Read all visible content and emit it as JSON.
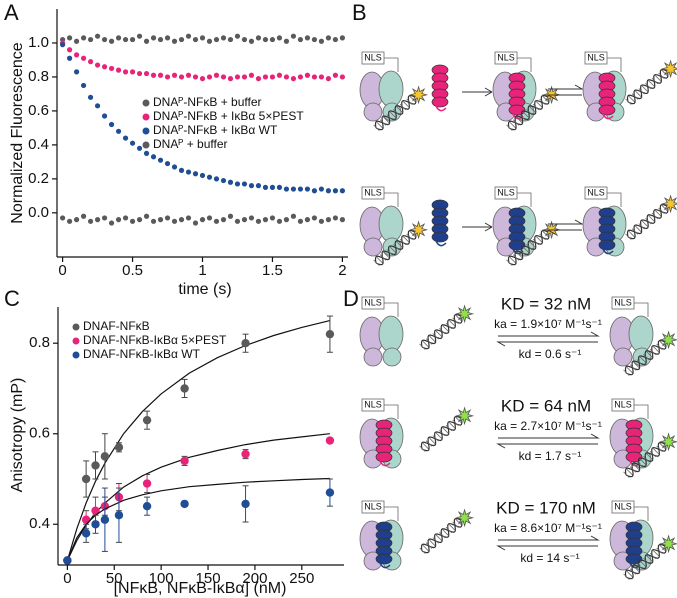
{
  "panels": [
    "A",
    "B",
    "C",
    "D"
  ],
  "chart_data": [
    {
      "type": "scatter",
      "x_label": "time (s)",
      "y_label": "Normalized Fluorescence",
      "xlim": [
        -0.04,
        2.04
      ],
      "ylim": [
        -0.26,
        1.2
      ],
      "xticks": [
        0,
        0.5,
        1,
        1.5,
        2
      ],
      "yticks": [
        {
          "value": 0,
          "label": "0.0"
        },
        0.2,
        0.4,
        0.6,
        0.8,
        {
          "value": 1,
          "label": "1.0"
        }
      ],
      "x": [
        0,
        0.05,
        0.1,
        0.15,
        0.2,
        0.25,
        0.3,
        0.35,
        0.4,
        0.45,
        0.5,
        0.55,
        0.6,
        0.65,
        0.7,
        0.75,
        0.8,
        0.85,
        0.9,
        0.95,
        1,
        1.05,
        1.1,
        1.15,
        1.2,
        1.25,
        1.3,
        1.35,
        1.4,
        1.45,
        1.5,
        1.55,
        1.6,
        1.65,
        1.7,
        1.75,
        1.8,
        1.85,
        1.9,
        1.95,
        2
      ],
      "series": [
        {
          "name": "DNAᴾ-NFκB + buffer",
          "color": "#5a5a5a",
          "values": [
            1.02,
            1.03,
            1.01,
            1.03,
            1.02,
            1.04,
            1.02,
            1.01,
            1.03,
            1.02,
            1.02,
            1.04,
            1.01,
            1.03,
            1.02,
            1.03,
            1.01,
            1.02,
            1.04,
            1.02,
            1.03,
            1.01,
            1.02,
            1.03,
            1.02,
            1.04,
            1.02,
            1.01,
            1.03,
            1.02,
            1.02,
            1.03,
            1.01,
            1.04,
            1.02,
            1.03,
            1.02,
            1.01,
            1.03,
            1.02,
            1.03
          ]
        },
        {
          "name": "DNAᴾ-NFκB + IκBα 5×PEST",
          "color": "#e8247a",
          "values": [
            1.0,
            0.96,
            0.93,
            0.91,
            0.89,
            0.87,
            0.86,
            0.85,
            0.84,
            0.83,
            0.83,
            0.82,
            0.82,
            0.81,
            0.81,
            0.8,
            0.81,
            0.8,
            0.81,
            0.8,
            0.79,
            0.8,
            0.81,
            0.8,
            0.79,
            0.8,
            0.8,
            0.81,
            0.79,
            0.8,
            0.8,
            0.81,
            0.8,
            0.79,
            0.8,
            0.81,
            0.8,
            0.8,
            0.79,
            0.81,
            0.8
          ]
        },
        {
          "name": "DNAᴾ-NFκB + IκBα WT",
          "color": "#1f4e96",
          "values": [
            0.99,
            0.91,
            0.83,
            0.75,
            0.68,
            0.63,
            0.57,
            0.52,
            0.48,
            0.44,
            0.41,
            0.38,
            0.35,
            0.33,
            0.31,
            0.29,
            0.27,
            0.25,
            0.24,
            0.23,
            0.22,
            0.21,
            0.2,
            0.19,
            0.18,
            0.17,
            0.17,
            0.16,
            0.16,
            0.15,
            0.15,
            0.15,
            0.14,
            0.14,
            0.14,
            0.14,
            0.13,
            0.14,
            0.13,
            0.13,
            0.13
          ]
        },
        {
          "name": "DNAᴾ + buffer",
          "color": "#5a5a5a",
          "values": [
            -0.03,
            -0.05,
            -0.04,
            -0.02,
            -0.05,
            -0.04,
            -0.03,
            -0.06,
            -0.04,
            -0.03,
            -0.05,
            -0.04,
            -0.02,
            -0.05,
            -0.04,
            -0.03,
            -0.05,
            -0.04,
            -0.03,
            -0.06,
            -0.04,
            -0.03,
            -0.05,
            -0.04,
            -0.02,
            -0.05,
            -0.04,
            -0.03,
            -0.05,
            -0.04,
            -0.03,
            -0.05,
            -0.04,
            -0.02,
            -0.05,
            -0.04,
            -0.03,
            -0.05,
            -0.04,
            -0.03,
            -0.04
          ]
        }
      ]
    },
    {
      "type": "scatter",
      "x_label": "[NFκB, NFκB-IκBα] (nM)",
      "y_label": "Anisotropy (mP)",
      "xlim": [
        -10,
        295
      ],
      "ylim": [
        0.31,
        0.88
      ],
      "xticks": [
        0,
        50,
        100,
        150,
        200,
        250
      ],
      "yticks": [
        0.4,
        0.6,
        0.8
      ],
      "x": [
        0,
        20,
        30,
        40,
        55,
        85,
        125,
        190,
        280
      ],
      "fit_x": [
        0,
        10,
        20,
        30,
        40,
        60,
        80,
        100,
        130,
        160,
        190,
        220,
        250,
        280
      ],
      "series": [
        {
          "name": "DNAF-NFκB",
          "color": "#5a5a5a",
          "values": [
            0.32,
            0.5,
            0.53,
            0.55,
            0.57,
            0.63,
            0.7,
            0.8,
            0.82
          ],
          "errors": [
            0,
            0.04,
            0.03,
            0.05,
            0.01,
            0.02,
            0.02,
            0.02,
            0.04
          ],
          "fit": [
            0.32,
            0.39,
            0.447,
            0.495,
            0.535,
            0.6,
            0.649,
            0.688,
            0.734,
            0.768,
            0.795,
            0.817,
            0.835,
            0.85
          ]
        },
        {
          "name": "DNAF-NFκB-IκBα 5×PEST",
          "color": "#e8247a",
          "values": [
            0.32,
            0.41,
            0.43,
            0.44,
            0.46,
            0.49,
            0.54,
            0.555,
            0.585
          ],
          "errors": [
            0,
            0.02,
            0.03,
            0.02,
            0.03,
            0.02,
            0.01,
            0.01,
            0.005
          ],
          "fit": [
            0.32,
            0.364,
            0.398,
            0.425,
            0.447,
            0.482,
            0.507,
            0.526,
            0.548,
            0.563,
            0.576,
            0.586,
            0.593,
            0.6
          ]
        },
        {
          "name": "DNAF-NFκB-IκBα WT",
          "color": "#1f4e96",
          "values": [
            0.32,
            0.38,
            0.4,
            0.41,
            0.42,
            0.44,
            0.445,
            0.445,
            0.47
          ],
          "errors": [
            0,
            0.02,
            0.02,
            0.07,
            0.06,
            0.02,
            0.005,
            0.04,
            0.03
          ],
          "fit": [
            0.32,
            0.37,
            0.4,
            0.42,
            0.434,
            0.453,
            0.465,
            0.474,
            0.483,
            0.488,
            0.493,
            0.496,
            0.499,
            0.501
          ]
        }
      ]
    }
  ],
  "diagram": {
    "nls_label": "NLS",
    "kinetics": [
      {
        "kd_const": "KD = 32 nM",
        "ka": "ka = 1.9×10⁷ M⁻¹s⁻¹",
        "kd": "kd = 0.6 s⁻¹"
      },
      {
        "kd_const": "KD = 64 nM",
        "ka": "ka = 2.7×10⁷ M⁻¹s⁻¹",
        "kd": "kd = 1.7 s⁻¹"
      },
      {
        "kd_const": "KD = 170 nM",
        "ka": "ka = 8.6×10⁷ M⁻¹s⁻¹",
        "kd": "kd = 14 s⁻¹"
      }
    ]
  }
}
